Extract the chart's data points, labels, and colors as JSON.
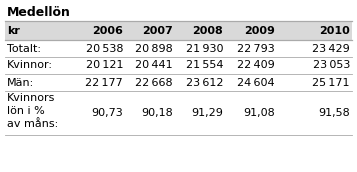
{
  "title": "Medellön",
  "col_header": [
    "kr",
    "2006",
    "2007",
    "2008",
    "2009",
    "2010"
  ],
  "rows": [
    [
      "Totalt:",
      "20 538",
      "20 898",
      "21 930",
      "22 793",
      "23 429"
    ],
    [
      "Kvinnor:",
      "20 121",
      "20 441",
      "21 554",
      "22 409",
      "23 053"
    ],
    [
      "Män:",
      "22 177",
      "22 668",
      "23 612",
      "24 604",
      "25 171"
    ],
    [
      "Kvinnors\nlön i %\nav måns:",
      "90,73",
      "90,18",
      "91,29",
      "91,08",
      "91,58"
    ]
  ],
  "header_bg": "#d9d9d9",
  "separator_color": "#aaaaaa",
  "text_color": "#000000",
  "title_fontsize": 9,
  "header_fontsize": 8,
  "cell_fontsize": 8,
  "fig_w": 3.57,
  "fig_h": 1.72,
  "dpi": 100
}
